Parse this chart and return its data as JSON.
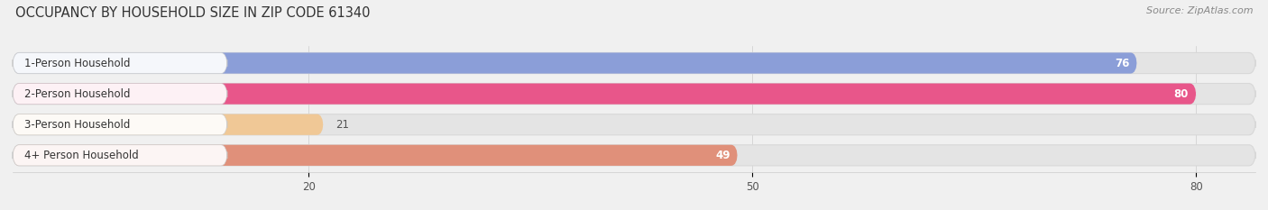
{
  "title": "OCCUPANCY BY HOUSEHOLD SIZE IN ZIP CODE 61340",
  "source": "Source: ZipAtlas.com",
  "categories": [
    "1-Person Household",
    "2-Person Household",
    "3-Person Household",
    "4+ Person Household"
  ],
  "values": [
    76,
    80,
    21,
    49
  ],
  "bar_colors": [
    "#8b9ed8",
    "#e8568a",
    "#f0c896",
    "#e0907a"
  ],
  "xlim_max": 84,
  "xticks": [
    20,
    50,
    80
  ],
  "label_inside_threshold": 30,
  "bg_color": "#f0f0f0",
  "bar_bg_color": "#e4e4e4",
  "bar_bg_edge_color": "#d8d8d8",
  "title_fontsize": 10.5,
  "source_fontsize": 8,
  "label_fontsize": 8.5,
  "value_fontsize": 8.5,
  "tick_fontsize": 8.5,
  "bar_height": 0.68,
  "figsize": [
    14.06,
    2.33
  ],
  "dpi": 100
}
